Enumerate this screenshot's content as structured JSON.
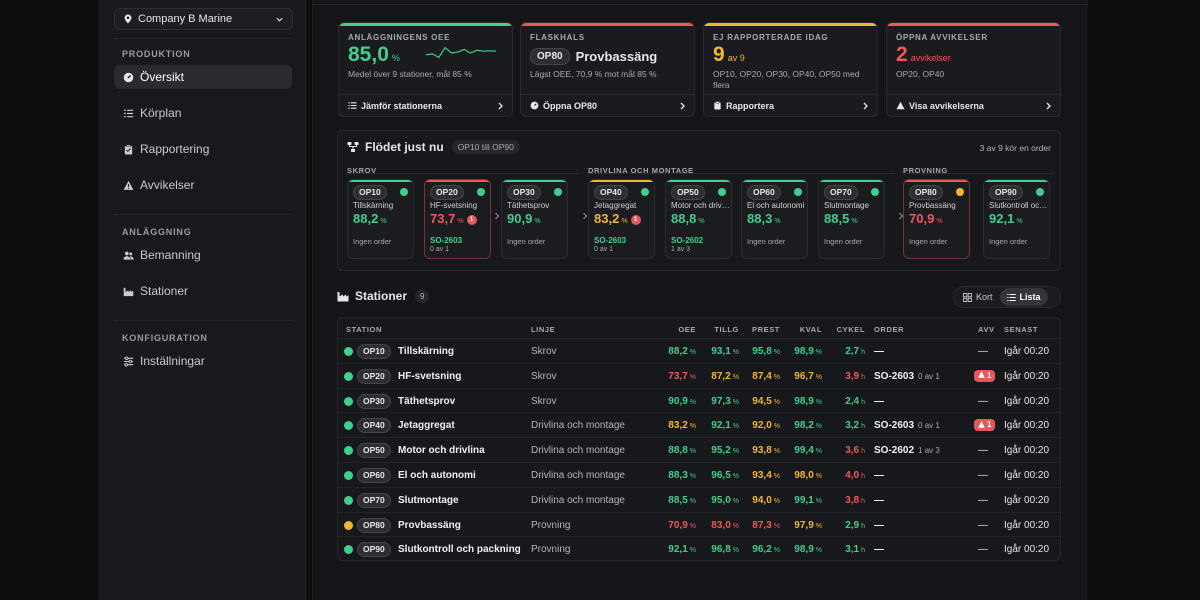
{
  "colors": {
    "green": "#3fcf8e",
    "yellow": "#f2b632",
    "red": "#f0585c",
    "badge_red": "#e4585c"
  },
  "sidebar": {
    "company": "Company B Marine",
    "sections": [
      {
        "title": "PRODUKTION",
        "items": [
          {
            "label": "Översikt",
            "icon": "gauge-icon",
            "active": true
          },
          {
            "label": "Körplan",
            "icon": "list-icon"
          },
          {
            "label": "Rapportering",
            "icon": "clipboard-icon"
          },
          {
            "label": "Avvikelser",
            "icon": "warning-icon"
          }
        ]
      },
      {
        "title": "ANLÄGGNING",
        "items": [
          {
            "label": "Bemanning",
            "icon": "users-icon"
          },
          {
            "label": "Stationer",
            "icon": "factory-icon"
          }
        ]
      },
      {
        "title": "KONFIGURATION",
        "items": [
          {
            "label": "Inställningar",
            "icon": "sliders-icon"
          }
        ]
      }
    ]
  },
  "kpis": [
    {
      "label": "ANLÄGGNINGENS OEE",
      "value": "85,0",
      "unit": "%",
      "sub": "Medel över 9 stationer, mål 85 %",
      "link": "Jämför stationerna",
      "color": "#3fcf8e",
      "sparkline": [
        0.6,
        0.55,
        0.75,
        0.2,
        0.5,
        0.45,
        0.3,
        0.5,
        0.35,
        0.4,
        0.38,
        0.4
      ]
    },
    {
      "label": "FLASKHALS",
      "code": "OP80",
      "value": "Provbassäng",
      "sub": "Lägst OEE, 70,9 % mot mål 85 %",
      "link": "Öppna OP80",
      "color": "#f0585c"
    },
    {
      "label": "EJ RAPPORTERADE IDAG",
      "value": "9",
      "unit": "av 9",
      "sub": "OP10, OP20, OP30, OP40, OP50 med flera",
      "link": "Rapportera",
      "color": "#f2b632"
    },
    {
      "label": "ÖPPNA AVVIKELSER",
      "value": "2",
      "unit": "avvikelser",
      "sub": "OP20, OP40",
      "link": "Visa avvikelserna",
      "color": "#f0585c"
    }
  ],
  "flow": {
    "title": "Flödet just nu",
    "range": "OP10 till OP90",
    "status": "3 av 9 kör en order",
    "groups": [
      "SKROV",
      "DRIVLINA OCH MONTAGE",
      "PROVNING"
    ],
    "stations": [
      {
        "code": "OP10",
        "name": "Tillskärning",
        "oee": "88,2",
        "state": "g",
        "order": "Ingen order"
      },
      {
        "code": "OP20",
        "name": "HF-svetsning",
        "oee": "73,7",
        "state": "g",
        "valc": "r",
        "badge": "1",
        "order_code": "SO-2603",
        "order_sub": "0 av 1",
        "alert": true
      },
      {
        "code": "OP30",
        "name": "Täthetsprov",
        "oee": "90,9",
        "state": "g",
        "order": "Ingen order"
      },
      {
        "code": "OP40",
        "name": "Jetaggregat",
        "oee": "83,2",
        "state": "g",
        "valc": "y",
        "badge": "1",
        "order_code": "SO-2603",
        "order_sub": "0 av 1",
        "topc": "y"
      },
      {
        "code": "OP50",
        "name": "Motor och drivlina",
        "oee": "88,8",
        "state": "g",
        "order_code": "SO-2602",
        "order_sub": "1 av 3"
      },
      {
        "code": "OP60",
        "name": "El och autonomi",
        "oee": "88,3",
        "state": "g",
        "order": "Ingen order"
      },
      {
        "code": "OP70",
        "name": "Slutmontage",
        "oee": "88,5",
        "state": "g",
        "order": "Ingen order"
      },
      {
        "code": "OP80",
        "name": "Provbassäng",
        "oee": "70,9",
        "state": "y",
        "valc": "r",
        "order": "Ingen order",
        "alert": true
      },
      {
        "code": "OP90",
        "name": "Slutkontroll och packning",
        "oee": "92,1",
        "state": "g",
        "order": "Ingen order"
      }
    ]
  },
  "stations": {
    "title": "Stationer",
    "count": "9",
    "view_card": "Kort",
    "view_list": "Lista",
    "headers": {
      "station": "STATION",
      "linje": "LINJE",
      "oee": "OEE",
      "tillg": "TILLG",
      "prest": "PREST",
      "kval": "KVAL",
      "cykel": "CYKEL",
      "order": "ORDER",
      "avv": "AVV",
      "senast": "SENAST"
    },
    "rows": [
      {
        "state": "g",
        "code": "OP10",
        "name": "Tillskärning",
        "line": "Skrov",
        "oee": [
          "88,2",
          "g"
        ],
        "tillg": [
          "93,1",
          "g"
        ],
        "prest": [
          "95,8",
          "g"
        ],
        "kval": [
          "98,9",
          "g"
        ],
        "cykel": [
          "2,7",
          "g"
        ],
        "order": "—",
        "avv": "—",
        "last": "Igår 00:20"
      },
      {
        "state": "g",
        "code": "OP20",
        "name": "HF-svetsning",
        "line": "Skrov",
        "oee": [
          "73,7",
          "r"
        ],
        "tillg": [
          "87,2",
          "y"
        ],
        "prest": [
          "87,4",
          "y"
        ],
        "kval": [
          "96,7",
          "y"
        ],
        "cykel": [
          "3,9",
          "r"
        ],
        "order": "SO-2603",
        "order_sub": "0 av 1",
        "avv_badge": "1",
        "last": "Igår 00:20"
      },
      {
        "state": "g",
        "code": "OP30",
        "name": "Täthetsprov",
        "line": "Skrov",
        "oee": [
          "90,9",
          "g"
        ],
        "tillg": [
          "97,3",
          "g"
        ],
        "prest": [
          "94,5",
          "y"
        ],
        "kval": [
          "98,9",
          "g"
        ],
        "cykel": [
          "2,4",
          "g"
        ],
        "order": "—",
        "avv": "—",
        "last": "Igår 00:20"
      },
      {
        "state": "g",
        "code": "OP40",
        "name": "Jetaggregat",
        "line": "Drivlina och montage",
        "oee": [
          "83,2",
          "y"
        ],
        "tillg": [
          "92,1",
          "g"
        ],
        "prest": [
          "92,0",
          "y"
        ],
        "kval": [
          "98,2",
          "g"
        ],
        "cykel": [
          "3,2",
          "g"
        ],
        "order": "SO-2603",
        "order_sub": "0 av 1",
        "avv_badge": "1",
        "last": "Igår 00:20"
      },
      {
        "state": "g",
        "code": "OP50",
        "name": "Motor och drivlina",
        "line": "Drivlina och montage",
        "oee": [
          "88,8",
          "g"
        ],
        "tillg": [
          "95,2",
          "g"
        ],
        "prest": [
          "93,8",
          "y"
        ],
        "kval": [
          "99,4",
          "g"
        ],
        "cykel": [
          "3,6",
          "r"
        ],
        "order": "SO-2602",
        "order_sub": "1 av 3",
        "avv": "—",
        "last": "Igår 00:20"
      },
      {
        "state": "g",
        "code": "OP60",
        "name": "El och autonomi",
        "line": "Drivlina och montage",
        "oee": [
          "88,3",
          "g"
        ],
        "tillg": [
          "96,5",
          "g"
        ],
        "prest": [
          "93,4",
          "y"
        ],
        "kval": [
          "98,0",
          "y"
        ],
        "cykel": [
          "4,0",
          "r"
        ],
        "order": "—",
        "avv": "—",
        "last": "Igår 00:20"
      },
      {
        "state": "g",
        "code": "OP70",
        "name": "Slutmontage",
        "line": "Drivlina och montage",
        "oee": [
          "88,5",
          "g"
        ],
        "tillg": [
          "95,0",
          "g"
        ],
        "prest": [
          "94,0",
          "y"
        ],
        "kval": [
          "99,1",
          "g"
        ],
        "cykel": [
          "3,8",
          "r"
        ],
        "order": "—",
        "avv": "—",
        "last": "Igår 00:20"
      },
      {
        "state": "y",
        "code": "OP80",
        "name": "Provbassäng",
        "line": "Provning",
        "oee": [
          "70,9",
          "r"
        ],
        "tillg": [
          "83,0",
          "r"
        ],
        "prest": [
          "87,3",
          "r"
        ],
        "kval": [
          "97,9",
          "y"
        ],
        "cykel": [
          "2,9",
          "g"
        ],
        "order": "—",
        "avv": "—",
        "last": "Igår 00:20"
      },
      {
        "state": "g",
        "code": "OP90",
        "name": "Slutkontroll och packning",
        "line": "Provning",
        "oee": [
          "92,1",
          "g"
        ],
        "tillg": [
          "96,8",
          "g"
        ],
        "prest": [
          "96,2",
          "g"
        ],
        "kval": [
          "98,9",
          "g"
        ],
        "cykel": [
          "3,1",
          "g"
        ],
        "order": "—",
        "avv": "—",
        "last": "Igår 00:20"
      }
    ],
    "units": {
      "pct": "%",
      "cycle": "h"
    }
  }
}
